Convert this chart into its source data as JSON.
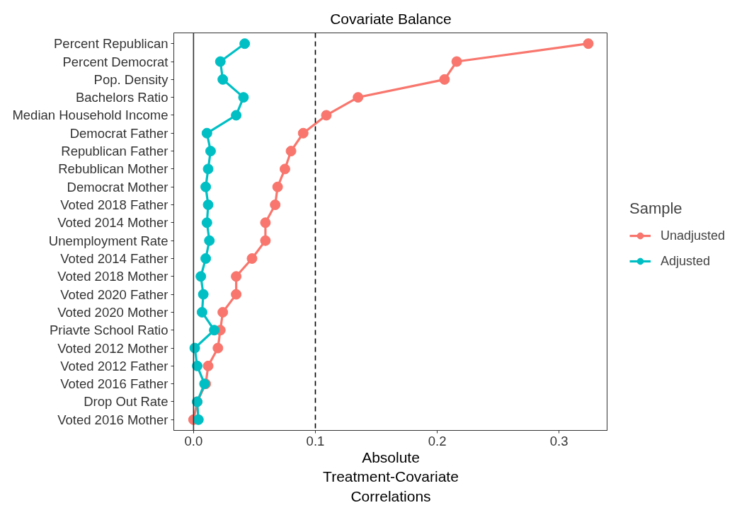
{
  "chart_data": {
    "type": "line",
    "title": "Covariate Balance",
    "xlabel": "Absolute\nTreatment-Covariate\nCorrelations",
    "legend_title": "Sample",
    "orientation": "horizontal",
    "marker": "circle",
    "line_style": "solid",
    "grid": false,
    "legend": "right",
    "categories": [
      "Percent Republican",
      "Percent Democrat",
      "Pop. Density",
      "Bachelors Ratio",
      "Median Household Income",
      "Democrat Father",
      "Republican Father",
      "Rebublican Mother",
      "Democrat Mother",
      "Voted 2018 Father",
      "Voted 2014 Mother",
      "Unemployment Rate",
      "Voted 2014 Father",
      "Voted 2018 Mother",
      "Voted 2020 Father",
      "Voted 2020 Mother",
      "Priavte School Ratio",
      "Voted 2012 Mother",
      "Voted 2012 Father",
      "Voted 2016 Father",
      "Drop Out Rate",
      "Voted 2016 Mother"
    ],
    "series": [
      {
        "name": "Unadjusted",
        "color": "#f8766d",
        "values": [
          0.324,
          0.216,
          0.206,
          0.135,
          0.109,
          0.09,
          0.08,
          0.075,
          0.069,
          0.067,
          0.059,
          0.059,
          0.048,
          0.035,
          0.035,
          0.024,
          0.022,
          0.02,
          0.012,
          0.01,
          0.003,
          0.0
        ]
      },
      {
        "name": "Adjusted",
        "color": "#00bfc4",
        "values": [
          0.042,
          0.022,
          0.024,
          0.041,
          0.035,
          0.011,
          0.014,
          0.012,
          0.01,
          0.012,
          0.011,
          0.013,
          0.01,
          0.006,
          0.008,
          0.007,
          0.017,
          0.001,
          0.003,
          0.009,
          0.003,
          0.004
        ]
      }
    ],
    "xlim": [
      -0.0162,
      0.34
    ],
    "xticks": [
      {
        "value": 0,
        "label": "0.0"
      },
      0.1,
      0.2,
      0.3
    ],
    "ref_lines": [
      {
        "axis": "x",
        "value": 0,
        "color": "#333333",
        "line_style": "solid"
      },
      {
        "axis": "x",
        "value": 0.1,
        "color": "#000000",
        "line_style": "dashed"
      }
    ]
  }
}
